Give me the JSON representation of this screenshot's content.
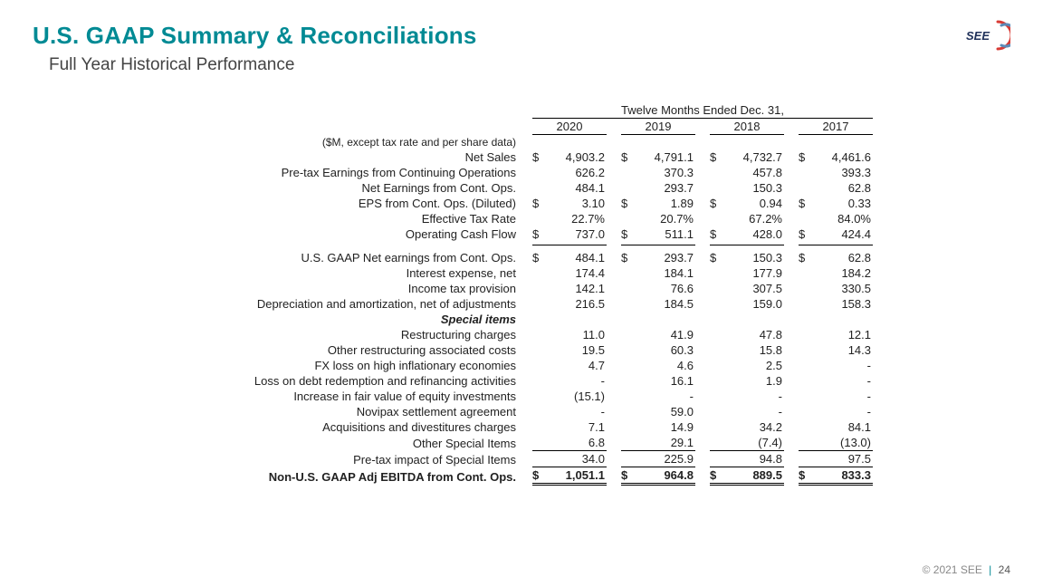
{
  "header": {
    "title": "U.S. GAAP Summary & Reconciliations",
    "subtitle": "Full Year Historical Performance",
    "title_color": "#008a94",
    "logo_text": "SEE"
  },
  "table": {
    "spanner": "Twelve Months Ended Dec. 31,",
    "years": [
      "2020",
      "2019",
      "2018",
      "2017"
    ],
    "note": "($M, except tax rate and per share data)",
    "special_items_label": "Special items",
    "rows_top": [
      {
        "label": "Net Sales",
        "sym": "$",
        "vals": [
          "4,903.2",
          "4,791.1",
          "4,732.7",
          "4,461.6"
        ]
      },
      {
        "label": "Pre-tax Earnings from Continuing Operations",
        "sym": "",
        "vals": [
          "626.2",
          "370.3",
          "457.8",
          "393.3"
        ]
      },
      {
        "label": "Net Earnings from Cont. Ops.",
        "sym": "",
        "vals": [
          "484.1",
          "293.7",
          "150.3",
          "62.8"
        ]
      },
      {
        "label": "EPS from Cont. Ops. (Diluted)",
        "sym": "$",
        "vals": [
          "3.10",
          "1.89",
          "0.94",
          "0.33"
        ]
      },
      {
        "label": "Effective Tax Rate",
        "sym": "",
        "vals": [
          "22.7%",
          "20.7%",
          "67.2%",
          "84.0%"
        ]
      },
      {
        "label": "Operating Cash Flow",
        "sym": "$",
        "vals": [
          "737.0",
          "511.1",
          "428.0",
          "424.4"
        ]
      }
    ],
    "rows_mid": [
      {
        "label": "U.S. GAAP Net earnings from Cont. Ops.",
        "sym": "$",
        "vals": [
          "484.1",
          "293.7",
          "150.3",
          "62.8"
        ]
      },
      {
        "label": "Interest expense, net",
        "sym": "",
        "vals": [
          "174.4",
          "184.1",
          "177.9",
          "184.2"
        ]
      },
      {
        "label": "Income tax provision",
        "sym": "",
        "vals": [
          "142.1",
          "76.6",
          "307.5",
          "330.5"
        ]
      },
      {
        "label": "Depreciation and amortization, net of adjustments",
        "sym": "",
        "vals": [
          "216.5",
          "184.5",
          "159.0",
          "158.3"
        ]
      }
    ],
    "rows_special": [
      {
        "label": "Restructuring charges",
        "sym": "",
        "vals": [
          "11.0",
          "41.9",
          "47.8",
          "12.1"
        ]
      },
      {
        "label": "Other restructuring associated costs",
        "sym": "",
        "vals": [
          "19.5",
          "60.3",
          "15.8",
          "14.3"
        ]
      },
      {
        "label": "FX loss on high inflationary economies",
        "sym": "",
        "vals": [
          "4.7",
          "4.6",
          "2.5",
          "-"
        ]
      },
      {
        "label": "Loss on debt redemption and refinancing activities",
        "sym": "",
        "vals": [
          "-",
          "16.1",
          "1.9",
          "-"
        ]
      },
      {
        "label": "Increase in fair value of equity investments",
        "sym": "",
        "vals": [
          "(15.1)",
          "-",
          "-",
          "-"
        ]
      },
      {
        "label": "Novipax settlement agreement",
        "sym": "",
        "vals": [
          "-",
          "59.0",
          "-",
          "-"
        ]
      },
      {
        "label": "Acquisitions and divestitures charges",
        "sym": "",
        "vals": [
          "7.1",
          "14.9",
          "34.2",
          "84.1"
        ]
      },
      {
        "label": "Other Special Items",
        "sym": "",
        "vals": [
          "6.8",
          "29.1",
          "(7.4)",
          "(13.0)"
        ]
      }
    ],
    "pretax": {
      "label": "Pre-tax impact of Special Items",
      "sym": "",
      "vals": [
        "34.0",
        "225.9",
        "94.8",
        "97.5"
      ]
    },
    "total": {
      "label": "Non-U.S. GAAP Adj EBITDA from Cont. Ops.",
      "sym": "$",
      "vals": [
        "1,051.1",
        "964.8",
        "889.5",
        "833.3"
      ]
    }
  },
  "footer": {
    "copyright": "© 2021 SEE",
    "page": "24"
  },
  "colors": {
    "accent": "#008a94",
    "text": "#222222",
    "muted": "#888888",
    "logo_red": "#d83a34",
    "logo_blue": "#5b8bb8"
  }
}
